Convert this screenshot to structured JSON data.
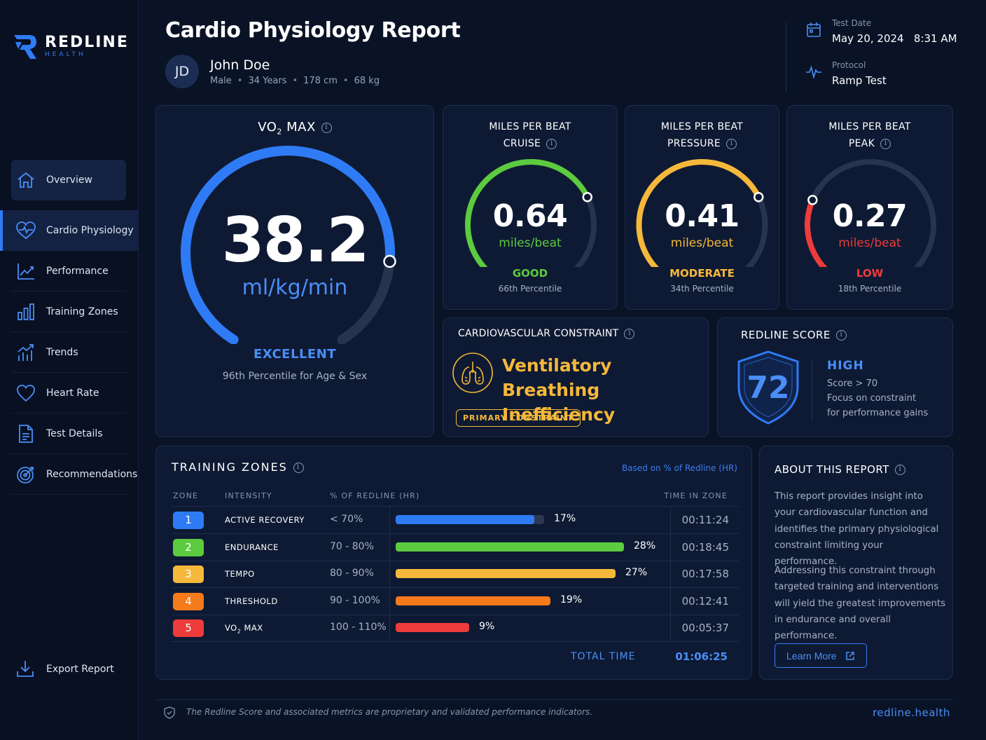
{
  "brand": {
    "name": "REDLINE",
    "sub": "HEALTH"
  },
  "nav": [
    {
      "label": "Overview",
      "icon": "home-icon"
    },
    {
      "label": "Cardio Physiology",
      "icon": "heart-pulse-icon"
    },
    {
      "label": "Performance",
      "icon": "line-chart-icon"
    },
    {
      "label": "Training Zones",
      "icon": "bar-chart-icon"
    },
    {
      "label": "Trends",
      "icon": "trend-icon"
    },
    {
      "label": "Heart Rate",
      "icon": "heart-icon"
    },
    {
      "label": "Test Details",
      "icon": "document-icon"
    },
    {
      "label": "Recommendations",
      "icon": "target-icon"
    }
  ],
  "export_label": "Export Report",
  "header": {
    "title": "Cardio Physiology Report",
    "initials": "JD",
    "name": "John Doe",
    "sex": "Male",
    "age": "34 Years",
    "height": "178 cm",
    "weight": "68 kg",
    "test_date_label": "Test Date",
    "test_date_value": "May 20, 2024   8:31 AM",
    "protocol_label": "Protocol",
    "protocol_value": "Ramp Test"
  },
  "vo2": {
    "title_main": "VO",
    "title_sub": "2",
    "title_end": " MAX",
    "value": "38.2",
    "unit": "ml/kg/min",
    "rating": "EXCELLENT",
    "percentile": "96th Percentile for Age & Sex",
    "level": 0.96,
    "color": "#2f7bf6"
  },
  "mpb": [
    {
      "line1": "MILES PER BEAT",
      "line2": "CRUISE",
      "value": "0.64",
      "unit": "miles/beat",
      "rating": "GOOD",
      "percentile": "66th Percentile",
      "level": 0.66,
      "color": "#5ccb3f"
    },
    {
      "line1": "MILES PER BEAT",
      "line2": "PRESSURE",
      "value": "0.41",
      "unit": "miles/beat",
      "rating": "MODERATE",
      "percentile": "34th Percentile",
      "level": 0.66,
      "color": "#f5b83a"
    },
    {
      "line1": "MILES PER BEAT",
      "line2": "PEAK",
      "value": "0.27",
      "unit": "miles/beat",
      "rating": "LOW",
      "percentile": "18th Percentile",
      "level": 0.33,
      "color": "#ee3b3b"
    }
  ],
  "constraint": {
    "title": "CARDIOVASCULAR CONSTRAINT",
    "line1": "Ventilatory Breathing",
    "line2": "Inefficiency",
    "badge": "PRIMARY CONSTRAINT",
    "color": "#f5b83a"
  },
  "score": {
    "title": "REDLINE SCORE",
    "value": "72",
    "level": "HIGH",
    "line1": "Score > 70",
    "line2": "Focus on constraint",
    "line3": "for performance gains"
  },
  "zones": {
    "title": "TRAINING ZONES",
    "based_on": "Based on % of Redline (HR)",
    "headers": {
      "zone": "ZONE",
      "intensity": "INTENSITY",
      "pct": "% OF REDLINE (HR)",
      "time": "TIME IN ZONE"
    },
    "rows": [
      {
        "num": "1",
        "name": "ACTIVE RECOVERY",
        "range": "< 70%",
        "pct_label": "17%",
        "pct": 17,
        "time": "00:11:24",
        "color": "#2f7bf6"
      },
      {
        "num": "2",
        "name": "ENDURANCE",
        "range": "70 - 80%",
        "pct_label": "28%",
        "pct": 28,
        "time": "00:18:45",
        "color": "#5ccb3f"
      },
      {
        "num": "3",
        "name": "TEMPO",
        "range": "80 - 90%",
        "pct_label": "27%",
        "pct": 27,
        "time": "00:17:58",
        "color": "#f5b83a"
      },
      {
        "num": "4",
        "name": "THRESHOLD",
        "range": "90 - 100%",
        "pct_label": "19%",
        "pct": 19,
        "time": "00:12:41",
        "color": "#f57a1a"
      },
      {
        "num": "5",
        "name": "VO",
        "name_sub": "2",
        "name_end": " MAX",
        "range": "100 - 110%",
        "pct_label": "9%",
        "pct": 9,
        "time": "00:05:37",
        "color": "#ee3b3b"
      }
    ],
    "total_label": "TOTAL TIME",
    "total_value": "01:06:25"
  },
  "about": {
    "title": "ABOUT THIS REPORT",
    "p1": "This report provides insight into your cardiovascular function and identifies the primary physiological constraint limiting your performance.",
    "p2": "Addressing this constraint through targeted training and interventions will yield the greatest improvements in endurance and overall performance.",
    "button": "Learn More"
  },
  "footer": {
    "text": "The Redline Score and associated metrics are proprietary and validated performance indicators.",
    "url": "redline.health"
  }
}
